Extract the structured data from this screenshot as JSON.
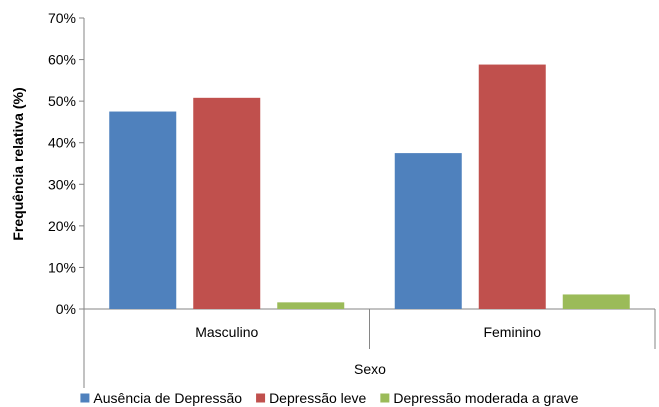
{
  "chart_data": {
    "type": "bar",
    "categories": [
      "Masculino",
      "Feminino"
    ],
    "series": [
      {
        "name": "Ausência de Depressão",
        "values": [
          47.5,
          37.5
        ],
        "color": "#4F81BD"
      },
      {
        "name": "Depressão leve",
        "values": [
          50.8,
          58.8
        ],
        "color": "#C0504D"
      },
      {
        "name": "Depressão moderada a grave",
        "values": [
          1.6,
          3.5
        ],
        "color": "#9BBB59"
      }
    ],
    "title": "",
    "xlabel": "Sexo",
    "ylabel": "Frequência relativa (%)",
    "ylim": [
      0,
      70
    ],
    "yticks": [
      0,
      10,
      20,
      30,
      40,
      50,
      60,
      70
    ],
    "ytick_labels": [
      "0%",
      "10%",
      "20%",
      "30%",
      "40%",
      "50%",
      "60%",
      "70%"
    ],
    "grid": false,
    "legend_position": "bottom"
  }
}
